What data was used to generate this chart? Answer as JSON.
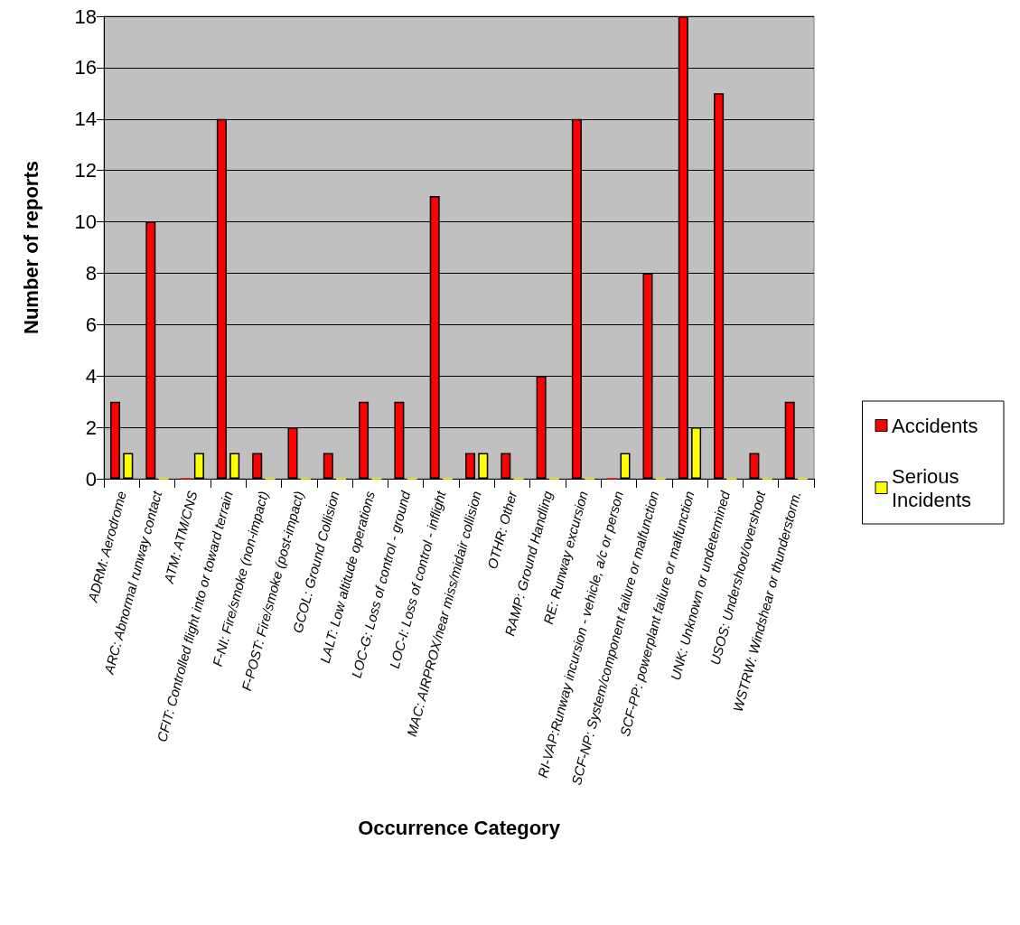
{
  "chart_data": {
    "type": "bar",
    "xlabel": "Occurrence Category",
    "ylabel": "Number of reports",
    "categories": [
      "ADRM: Aerodrome",
      "ARC: Abnormal runway contact",
      "ATM: ATM/CNS",
      "CFIT: Controlled flight into or toward terrain",
      "F-NI: Fire/smoke (non-impact)",
      "F-POST: Fire/smoke (post-impact)",
      "GCOL: Ground Collision",
      "LALT: Low altitude operations",
      "LOC-G: Loss of control - ground",
      "LOC-I: Loss of control - inflight",
      "MAC: AIRPROX/near miss/midair collision",
      "OTHR: Other",
      "RAMP: Ground Handling",
      "RE: Runway excursion",
      "RI-VAP:Runway incursion - vehicle, a/c or person",
      "SCF-NP: System/component failure or malfunction",
      "SCF-PP: powerplant failure or malfunction",
      "UNK: Unknown or undetermined",
      "USOS: Undershoot/overshoot",
      "WSTRW: Windshear or thunderstorm."
    ],
    "series": [
      {
        "name": "Accidents",
        "color": "#ff0000",
        "values": [
          3,
          10,
          0,
          14,
          1,
          2,
          1,
          3,
          3,
          11,
          1,
          1,
          4,
          14,
          0,
          8,
          18,
          15,
          1,
          3
        ]
      },
      {
        "name": "Serious Incidents",
        "color": "#ffff00",
        "values": [
          1,
          0,
          1,
          1,
          0,
          0,
          0,
          0,
          0,
          0,
          1,
          0,
          0,
          0,
          1,
          0,
          2,
          0,
          0,
          0
        ]
      }
    ],
    "ylim": [
      0,
      18
    ],
    "yticks": [
      0,
      2,
      4,
      6,
      8,
      10,
      12,
      14,
      16,
      18
    ],
    "grid": "y",
    "legend": "right"
  }
}
